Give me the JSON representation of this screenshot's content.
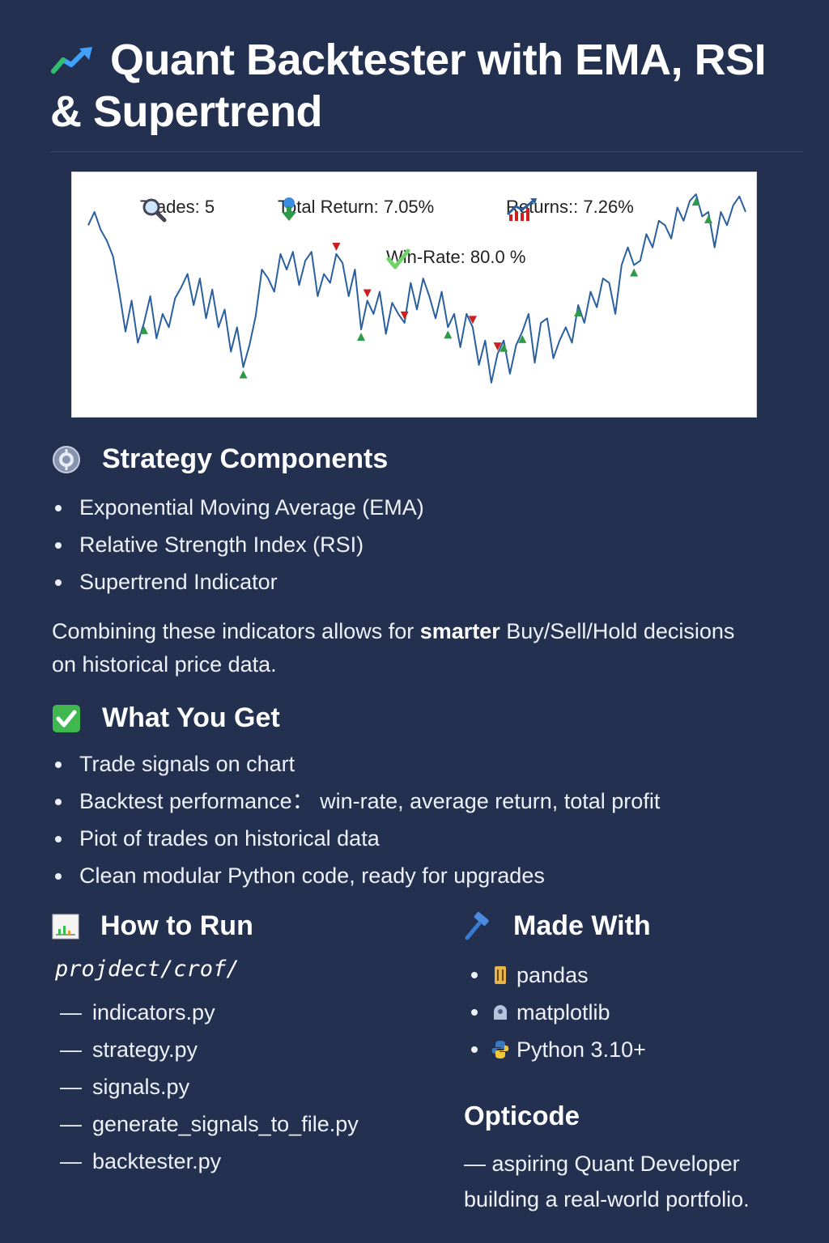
{
  "title": "Quant Backtester with EMA, RSI & Supertrend",
  "chart": {
    "stats": {
      "trades": "Trades: 5",
      "total_return": "Total Return: 7.05%",
      "returns": "Returns:: 7.26%",
      "win_rate": "Win-Rate: 80.0 %"
    },
    "colors": {
      "line": "#2a5fa0",
      "buy": "#2e9a48",
      "sell": "#cc1f1f"
    }
  },
  "chart_data": {
    "type": "line",
    "title": "",
    "xlabel": "",
    "ylabel": "",
    "grid": false,
    "ylim": [
      0,
      100
    ],
    "series": [
      {
        "values": [
          82,
          88,
          80,
          75,
          68,
          52,
          34,
          48,
          29,
          38,
          50,
          31,
          42,
          36,
          49,
          54,
          60,
          46,
          58,
          40,
          53,
          36,
          44,
          25,
          36,
          18,
          28,
          41,
          62,
          58,
          52,
          69,
          62,
          70,
          55,
          66,
          70,
          50,
          60,
          56,
          69,
          65,
          50,
          62,
          35,
          48,
          42,
          52,
          33,
          47,
          42,
          38,
          56,
          44,
          58,
          50,
          40,
          52,
          36,
          42,
          27,
          42,
          36,
          19,
          30,
          11,
          24,
          30,
          15,
          28,
          34,
          42,
          20,
          38,
          40,
          22,
          30,
          36,
          29,
          46,
          38,
          52,
          45,
          58,
          56,
          42,
          64,
          72,
          64,
          66,
          78,
          72,
          84,
          82,
          76,
          90,
          84,
          93,
          96,
          86,
          88,
          72,
          88,
          82,
          91,
          95,
          88
        ]
      }
    ],
    "signals": {
      "buy": [
        9,
        25,
        44,
        58,
        67,
        70,
        79,
        88,
        98,
        100
      ],
      "sell": [
        40,
        45,
        51,
        62,
        66
      ]
    }
  },
  "sections": {
    "components": {
      "heading": "Strategy Components",
      "items": [
        "Exponential Moving Average (EMA)",
        "Relative Strength Index (RSI)",
        "Supertrend Indicator"
      ],
      "para_pre": "Combining these indicators allows for ",
      "para_bold": "smarter",
      "para_post": " Buy/Sell/Hold decisions on historical price data."
    },
    "get": {
      "heading": "What You Get",
      "items": [
        "Trade signals on chart",
        "Backtest performance： win-rate, average return, total profit",
        "Piot of trades on historical data",
        "Clean modular Python code, ready for upgrades"
      ]
    },
    "run": {
      "heading": "How to Run",
      "path": "projdect/crof/",
      "dash": "—",
      "files": [
        "indicators.py",
        "strategy.py",
        "signals.py",
        "generate_signals_to_file.py",
        "backtester.py"
      ]
    },
    "made": {
      "heading": "Made With",
      "items": [
        {
          "label": "pandas",
          "icon": "pandas-icon"
        },
        {
          "label": "matplotlib",
          "icon": "matplotlib-icon"
        },
        {
          "label": "Python 3.10+",
          "icon": "python-icon"
        }
      ]
    }
  },
  "author": {
    "name": "Opticode",
    "tagline": "— aspiring Quant Developer building a real-world portfolio."
  }
}
